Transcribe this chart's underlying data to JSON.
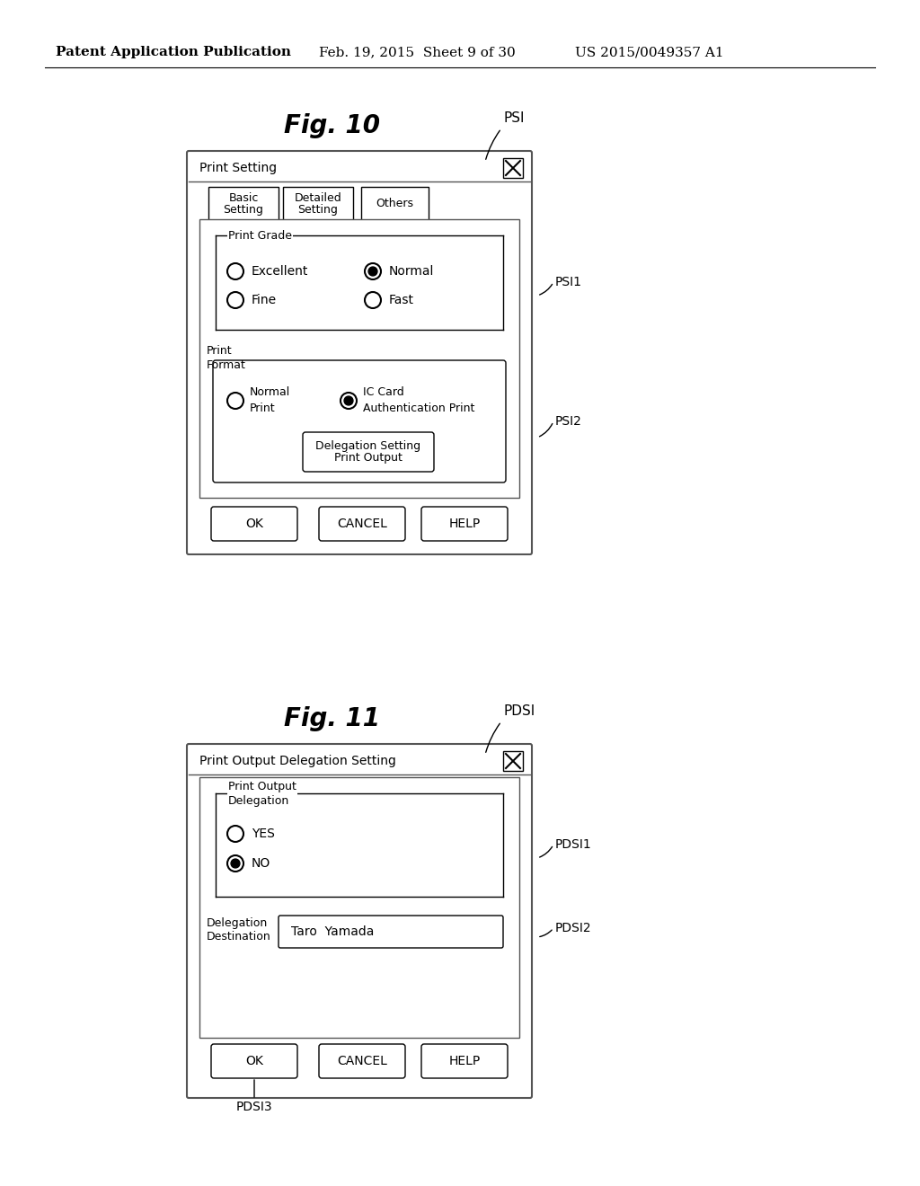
{
  "bg_color": "#ffffff",
  "header_text": "Patent Application Publication",
  "header_date": "Feb. 19, 2015  Sheet 9 of 30",
  "header_patent": "US 2015/0049357 A1",
  "fig10_title": "Fig. 10",
  "fig10_label": "PSI",
  "fig11_title": "Fig. 11",
  "fig11_label": "PDSI",
  "fig10": {
    "dialog_title": "Print Setting",
    "tabs": [
      "Basic\nSetting",
      "Detailed\nSetting",
      "Others"
    ],
    "group1_label": "Print Grade",
    "group1_side_label": "PSI1",
    "radio_row1": [
      {
        "label": "Excellent",
        "selected": false
      },
      {
        "label": "Normal",
        "selected": true
      }
    ],
    "radio_row2": [
      {
        "label": "Fine",
        "selected": false
      },
      {
        "label": "Fast",
        "selected": false
      }
    ],
    "group2_side_label": "PSI2",
    "print_format_label": "Print\nFormat",
    "radio_format": [
      {
        "label": "Normal\nPrint",
        "selected": false
      },
      {
        "label": "IC Card\nAuthentication Print",
        "selected": true
      }
    ],
    "delegation_btn": "Print Output\nDelegation Setting",
    "buttons": [
      "OK",
      "CANCEL",
      "HELP"
    ]
  },
  "fig11": {
    "dialog_title": "Print Output Delegation Setting",
    "group1_label": "Print Output\nDelegation",
    "group1_side_label": "PDSI1",
    "radio_items": [
      {
        "label": "YES",
        "selected": false
      },
      {
        "label": "NO",
        "selected": true
      }
    ],
    "dest_label": "Delegation\nDestination",
    "dest_side_label": "PDSI2",
    "text_field": "Taro  Yamada",
    "buttons": [
      "OK",
      "CANCEL",
      "HELP"
    ],
    "bottom_label": "PDSI3"
  }
}
